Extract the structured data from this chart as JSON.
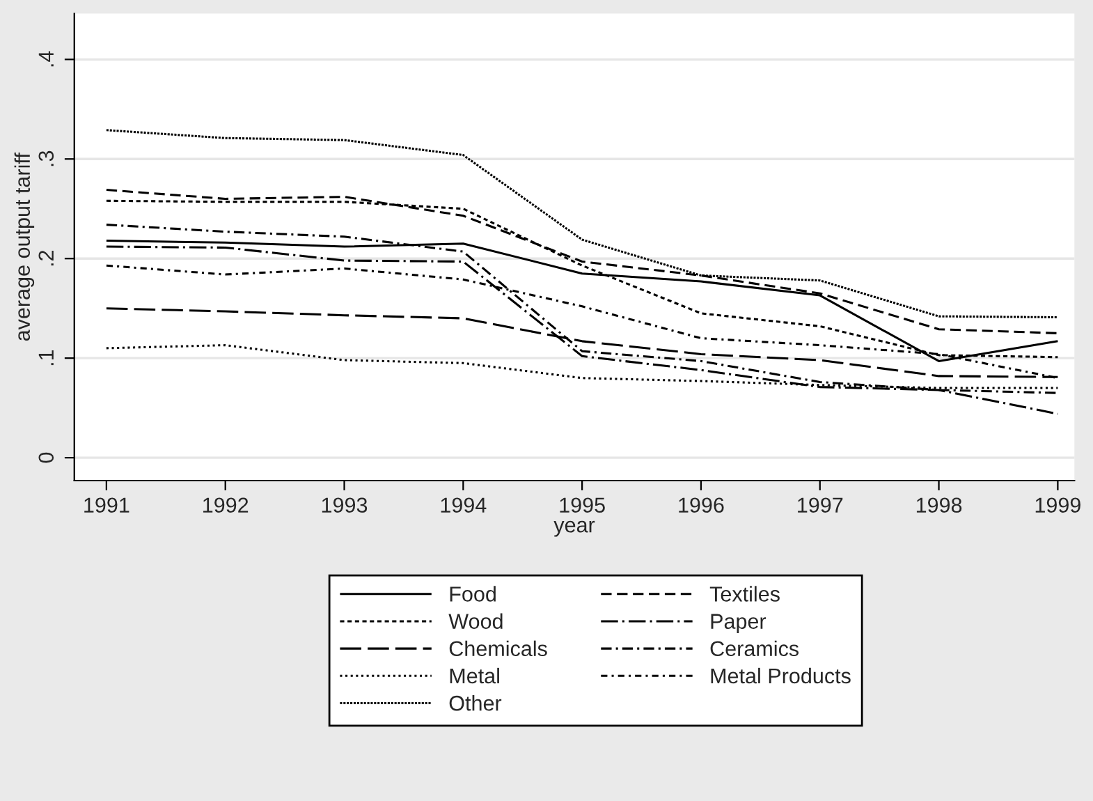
{
  "chart_data": {
    "type": "line",
    "xlabel": "year",
    "ylabel": "average output tariff",
    "x": [
      1991,
      1992,
      1993,
      1994,
      1995,
      1996,
      1997,
      1998,
      1999
    ],
    "xlim": [
      1990.73,
      1999.14
    ],
    "xticks": [
      1991,
      1992,
      1993,
      1994,
      1995,
      1996,
      1997,
      1998,
      1999
    ],
    "ylim": [
      -0.023,
      0.446
    ],
    "yticks": [
      {
        "value": 0,
        "label": "0"
      },
      {
        "value": 0.1,
        "label": ".1"
      },
      {
        "value": 0.2,
        "label": ".2"
      },
      {
        "value": 0.3,
        "label": ".3"
      },
      {
        "value": 0.4,
        "label": ".4"
      }
    ],
    "grid": "y",
    "legend": "bottom",
    "marker": "none",
    "series": [
      {
        "name": "Food",
        "color": "#000000",
        "line_style": "solid",
        "values": [
          0.218,
          0.216,
          0.212,
          0.215,
          0.185,
          0.177,
          0.163,
          0.097,
          0.117
        ]
      },
      {
        "name": "Textiles",
        "color": "#000000",
        "line_style": "dashed",
        "values": [
          0.269,
          0.26,
          0.262,
          0.243,
          0.197,
          0.183,
          0.165,
          0.129,
          0.125
        ]
      },
      {
        "name": "Wood",
        "color": "#000000",
        "line_style": "dotted",
        "values": [
          0.258,
          0.257,
          0.257,
          0.25,
          0.193,
          0.145,
          0.132,
          0.103,
          0.101
        ]
      },
      {
        "name": "Paper",
        "color": "#000000",
        "line_style": "longdashdot",
        "values": [
          0.212,
          0.211,
          0.198,
          0.197,
          0.102,
          0.088,
          0.071,
          0.068,
          0.044
        ]
      },
      {
        "name": "Chemicals",
        "color": "#000000",
        "line_style": "longdash",
        "values": [
          0.15,
          0.147,
          0.143,
          0.14,
          0.117,
          0.104,
          0.098,
          0.082,
          0.081
        ]
      },
      {
        "name": "Ceramics",
        "color": "#000000",
        "line_style": "dashdot",
        "values": [
          0.234,
          0.227,
          0.222,
          0.207,
          0.107,
          0.097,
          0.076,
          0.068,
          0.065
        ]
      },
      {
        "name": "Metal",
        "color": "#000000",
        "line_style": "finedotted",
        "values": [
          0.11,
          0.113,
          0.098,
          0.095,
          0.08,
          0.077,
          0.073,
          0.07,
          0.07
        ]
      },
      {
        "name": "Metal Products",
        "color": "#000000",
        "line_style": "shortdashdot",
        "values": [
          0.193,
          0.184,
          0.19,
          0.179,
          0.152,
          0.12,
          0.113,
          0.104,
          0.08
        ]
      },
      {
        "name": "Other",
        "color": "#000000",
        "line_style": "densedotted",
        "values": [
          0.329,
          0.321,
          0.319,
          0.304,
          0.219,
          0.183,
          0.178,
          0.142,
          0.141
        ]
      }
    ]
  }
}
